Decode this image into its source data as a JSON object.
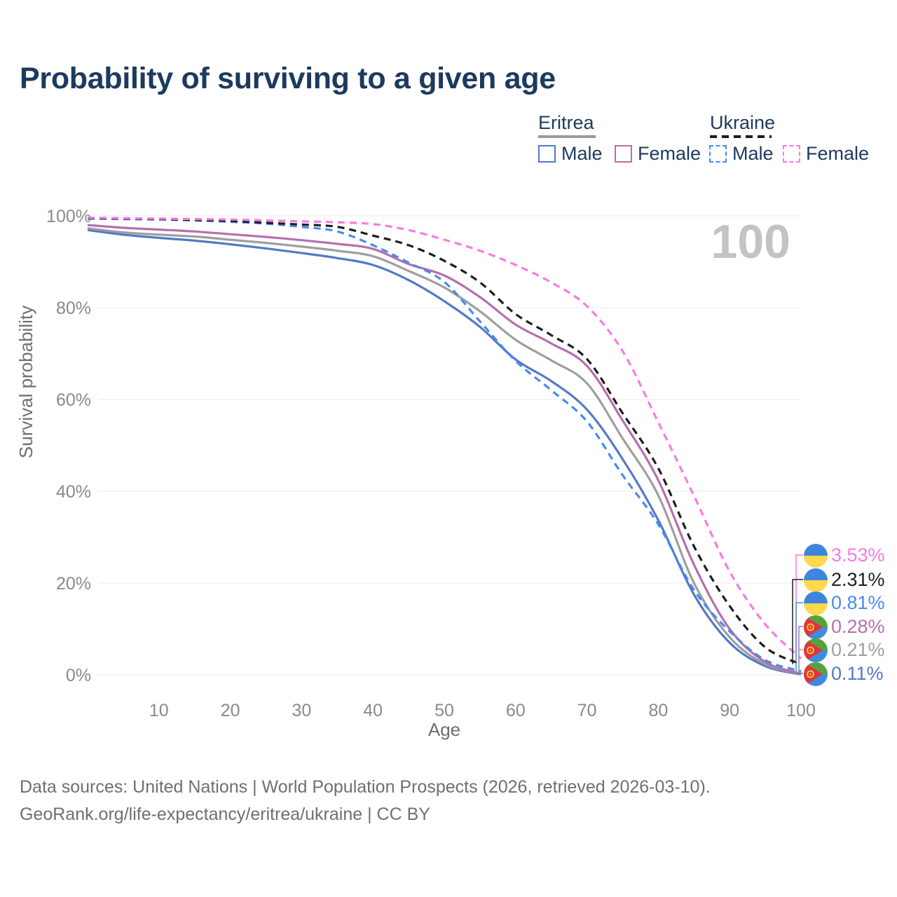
{
  "header": {
    "title": "Probability of surviving to a given age"
  },
  "legend": {
    "groups": [
      {
        "label": "Eritrea",
        "line_style": "solid",
        "line_color": "#9c9c9c",
        "items": [
          {
            "label": "Male",
            "color": "#527ac4",
            "dashed": false
          },
          {
            "label": "Female",
            "color": "#b56fae",
            "dashed": false
          }
        ]
      },
      {
        "label": "Ukraine",
        "line_style": "dashed",
        "line_color": "#1d1d1d",
        "items": [
          {
            "label": "Male",
            "color": "#478bf0",
            "dashed": true
          },
          {
            "label": "Female",
            "color": "#fb7ae3",
            "dashed": true
          }
        ]
      }
    ]
  },
  "chart_data": {
    "type": "line",
    "title": "Probability of surviving to a given age",
    "xlabel": "Age",
    "ylabel": "Survival probability",
    "xlim": [
      0,
      100
    ],
    "ylim": [
      0,
      100
    ],
    "grid": "horizontal",
    "legend_position": "top-right",
    "watermark": "100",
    "x_ticks": [
      10,
      20,
      30,
      40,
      50,
      60,
      70,
      80,
      90,
      100
    ],
    "y_ticks": [
      {
        "value": 100,
        "label": "100%"
      },
      {
        "value": 80,
        "label": "80%"
      },
      {
        "value": 60,
        "label": "60%"
      },
      {
        "value": 40,
        "label": "40%"
      },
      {
        "value": 20,
        "label": "20%"
      },
      {
        "value": 0,
        "label": "0%"
      }
    ],
    "x": [
      0,
      5,
      10,
      15,
      20,
      25,
      30,
      35,
      40,
      45,
      50,
      55,
      60,
      65,
      70,
      75,
      80,
      85,
      90,
      95,
      100
    ],
    "series": [
      {
        "id": "eritrea-male",
        "name": "Eritrea Male",
        "country": "Eritrea",
        "sex": "Male",
        "color": "#527ac4",
        "dashed": false,
        "flag": "eritrea",
        "end_label": "0.11%",
        "label_slot": 5,
        "values": [
          96.9,
          95.9,
          95.2,
          94.6,
          93.8,
          92.9,
          91.9,
          90.8,
          89.3,
          86.0,
          81.4,
          75.8,
          68.7,
          64.0,
          57.8,
          47.0,
          33.7,
          17.5,
          7.0,
          1.9,
          0.11
        ]
      },
      {
        "id": "eritrea-total",
        "name": "Eritrea (both sexes)",
        "country": "Eritrea",
        "sex": "Both",
        "color": "#9e9e9e",
        "dashed": false,
        "flag": "eritrea",
        "end_label": "0.21%",
        "label_slot": 4,
        "values": [
          97.3,
          96.4,
          95.9,
          95.5,
          94.8,
          94.1,
          93.3,
          92.4,
          91.2,
          88.0,
          84.4,
          79.2,
          73.0,
          68.5,
          63.5,
          51.5,
          39.1,
          20.0,
          8.2,
          2.3,
          0.21
        ]
      },
      {
        "id": "eritrea-female",
        "name": "Eritrea Female",
        "country": "Eritrea",
        "sex": "Female",
        "color": "#b56fae",
        "dashed": false,
        "flag": "eritrea",
        "end_label": "0.28%",
        "label_slot": 3,
        "values": [
          98.0,
          97.4,
          97.0,
          96.6,
          96.0,
          95.4,
          94.7,
          93.9,
          92.8,
          89.5,
          87.0,
          82.3,
          76.3,
          72.2,
          67.3,
          55.4,
          42.4,
          24.0,
          10.0,
          2.8,
          0.28
        ]
      },
      {
        "id": "ukraine-male",
        "name": "Ukraine Male",
        "country": "Ukraine",
        "sex": "Male",
        "color": "#478bf0",
        "dashed": true,
        "flag": "ukraine",
        "end_label": "0.81%",
        "label_slot": 2,
        "values": [
          99.4,
          99.3,
          99.2,
          99.0,
          98.7,
          98.3,
          97.6,
          96.6,
          93.6,
          89.8,
          85.6,
          77.0,
          68.4,
          62.0,
          55.2,
          43.5,
          32.8,
          18.5,
          9.5,
          3.2,
          0.81
        ]
      },
      {
        "id": "ukraine-total",
        "name": "Ukraine (both sexes)",
        "country": "Ukraine",
        "sex": "Both",
        "color": "#1d1d1d",
        "dashed": true,
        "flag": "ukraine",
        "end_label": "2.31%",
        "label_slot": 1,
        "values": [
          99.5,
          99.4,
          99.3,
          99.1,
          98.9,
          98.5,
          98.1,
          97.6,
          95.7,
          93.6,
          90.2,
          85.5,
          78.6,
          74.0,
          68.8,
          57.0,
          45.0,
          28.0,
          15.0,
          6.0,
          2.31
        ]
      },
      {
        "id": "ukraine-female",
        "name": "Ukraine Female",
        "country": "Ukraine",
        "sex": "Female",
        "color": "#fb7ae3",
        "dashed": true,
        "flag": "ukraine",
        "end_label": "3.53%",
        "label_slot": 0,
        "values": [
          99.6,
          99.5,
          99.4,
          99.3,
          99.2,
          99.0,
          98.8,
          98.6,
          98.2,
          96.9,
          94.8,
          92.4,
          89.3,
          85.5,
          80.3,
          70.5,
          55.0,
          39.0,
          22.5,
          11.0,
          3.53
        ]
      }
    ]
  },
  "flags": {
    "ukraine": {
      "blue": "#3f85dd",
      "yellow": "#ffd84d"
    },
    "eritrea": {
      "green": "#56a23d",
      "blue": "#3e8cde",
      "red": "#e03440",
      "yellow": "#f7c631"
    }
  },
  "colors": {
    "title": "#1d3a5e",
    "tick_text": "#8a8a8a",
    "axis_title_text": "#6f6f6f",
    "gridline": "#e8e8e8",
    "watermark": "#c3c3c3",
    "footer_text": "#6f6f6f"
  },
  "footer": {
    "line1": "Data sources: United Nations | World Population Prospects (2026, retrieved 2026-03-10).",
    "line2": "GeoRank.org/life-expectancy/eritrea/ukraine | CC BY"
  }
}
